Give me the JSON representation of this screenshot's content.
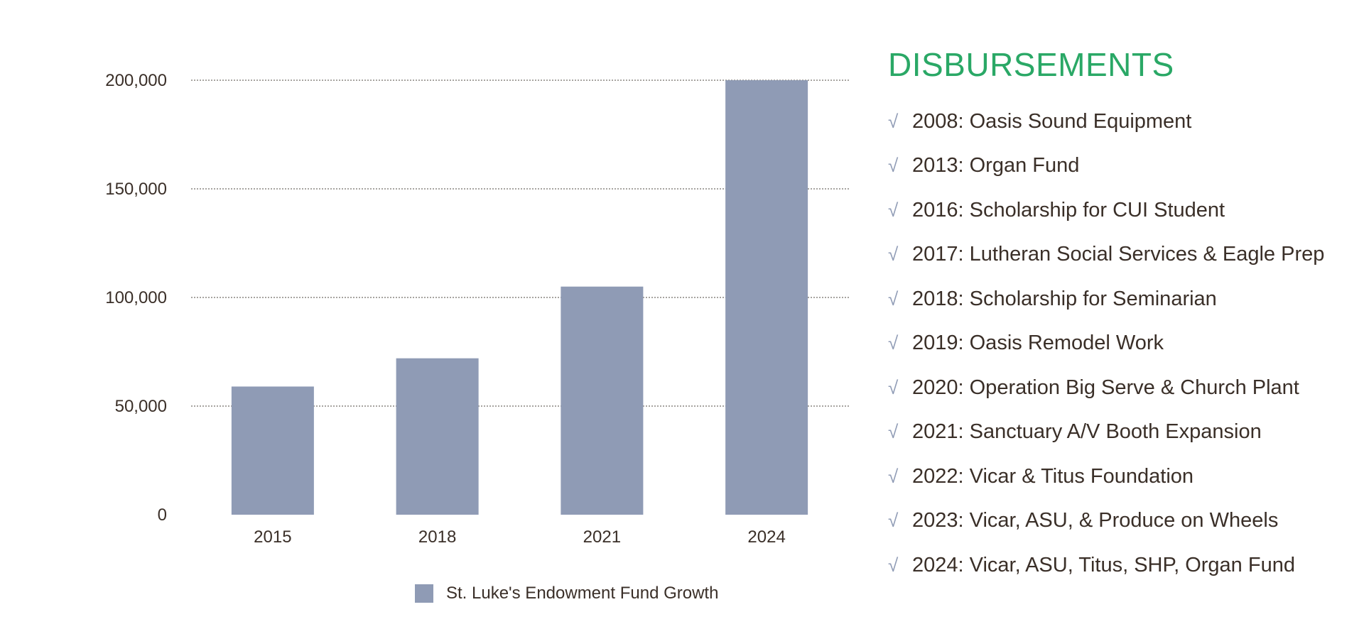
{
  "chart_data": {
    "type": "bar",
    "title": "",
    "xlabel": "",
    "ylabel": "",
    "categories": [
      "2015",
      "2018",
      "2021",
      "2024"
    ],
    "series": [
      {
        "name": "St. Luke's Endowment Fund Growth",
        "values": [
          59000,
          72000,
          105000,
          200000
        ]
      }
    ],
    "ylim": [
      0,
      200000
    ],
    "yticks": [
      0,
      50000,
      100000,
      150000,
      200000
    ],
    "ytick_labels": [
      "0",
      "50,000",
      "100,000",
      "150,000",
      "200,000"
    ],
    "grid": "horizontal-dotted",
    "legend": "bottom",
    "colors": {
      "bar": "#8f9bb5",
      "grid": "#8a8580"
    }
  },
  "disbursements": {
    "title": "DISBURSEMENTS",
    "title_color": "#2aa866",
    "check_icon": "check-icon",
    "items": [
      "2008: Oasis Sound Equipment",
      "2013: Organ Fund",
      "2016: Scholarship for CUI Student",
      "2017: Lutheran Social Services & Eagle Prep",
      "2018: Scholarship for Seminarian",
      "2019: Oasis Remodel Work",
      "2020: Operation Big Serve & Church Plant",
      "2021: Sanctuary A/V Booth Expansion",
      "2022: Vicar & Titus Foundation",
      "2023: Vicar, ASU, & Produce on Wheels",
      "2024: Vicar, ASU, Titus, SHP, Organ Fund"
    ]
  }
}
